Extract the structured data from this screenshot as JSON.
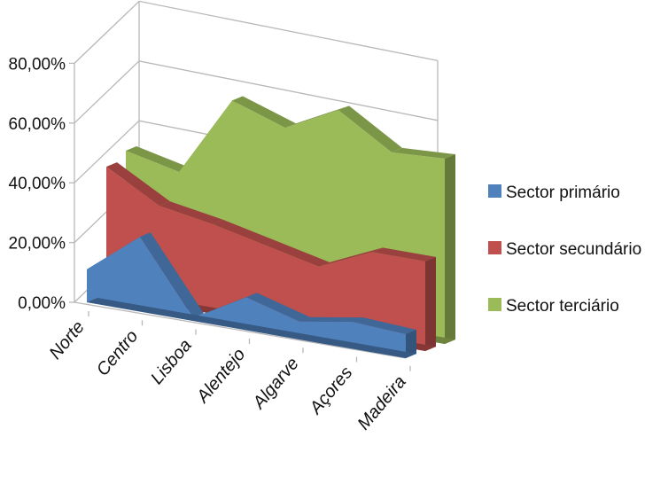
{
  "chart_data": {
    "type": "area",
    "subtype": "3d-area",
    "categories": [
      "Norte",
      "Centro",
      "Lisboa",
      "Alentejo",
      "Algarve",
      "Açores",
      "Madeira"
    ],
    "series": [
      {
        "name": "Sector primário",
        "values": [
          0.11,
          0.25,
          0.01,
          0.11,
          0.06,
          0.09,
          0.08
        ],
        "color": "#4f81bd"
      },
      {
        "name": "Sector secundário",
        "values": [
          0.43,
          0.33,
          0.3,
          0.26,
          0.22,
          0.3,
          0.3
        ],
        "color": "#c0504d"
      },
      {
        "name": "Sector terciário",
        "values": [
          0.46,
          0.42,
          0.69,
          0.63,
          0.72,
          0.61,
          0.62
        ],
        "color": "#9bbb59"
      }
    ],
    "stacked": true,
    "y_ticks": [
      "0,00%",
      "20,00%",
      "40,00%",
      "60,00%",
      "80,00%"
    ],
    "ylim": [
      0,
      0.8
    ],
    "grid": true,
    "legend_position": "right"
  }
}
